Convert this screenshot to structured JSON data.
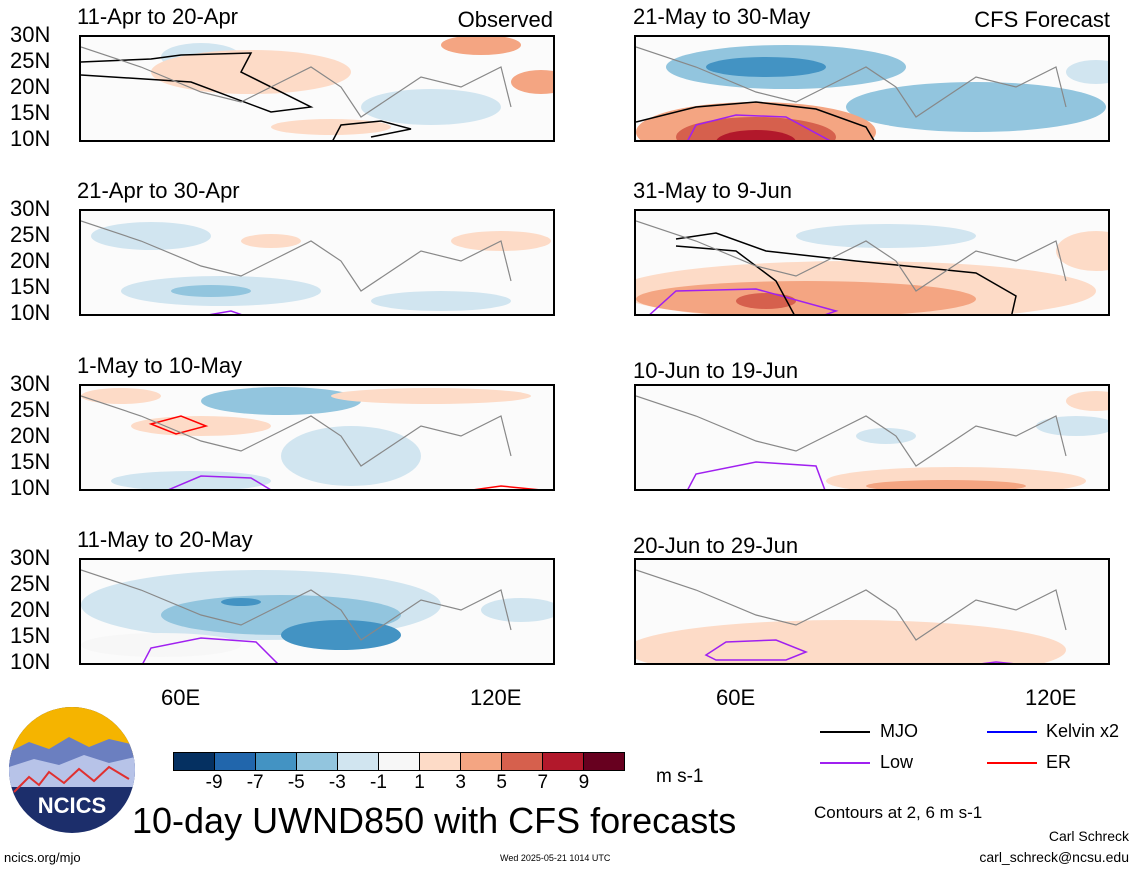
{
  "panels": [
    {
      "title": "11-Apr to 20-Apr",
      "label": "Observed"
    },
    {
      "title": "21-Apr to 30-Apr",
      "label": ""
    },
    {
      "title": "1-May to 10-May",
      "label": ""
    },
    {
      "title": "11-May to 20-May",
      "label": ""
    },
    {
      "title": "21-May to 30-May",
      "label": "CFS Forecast"
    },
    {
      "title": "31-May to 9-Jun",
      "label": ""
    },
    {
      "title": "10-Jun to 19-Jun",
      "label": ""
    },
    {
      "title": "20-Jun to 29-Jun",
      "label": ""
    }
  ],
  "lat_labels": [
    "30N",
    "25N",
    "20N",
    "15N",
    "10N"
  ],
  "lon_labels": [
    "60E",
    "120E"
  ],
  "colorbar": {
    "colors": [
      "#053061",
      "#2166ac",
      "#4393c3",
      "#92c5de",
      "#d1e5f0",
      "#f7f7f7",
      "#fddbc7",
      "#f4a582",
      "#d6604d",
      "#b2182b",
      "#67001f"
    ],
    "labels": [
      "-9",
      "-7",
      "-5",
      "-3",
      "-1",
      "1",
      "3",
      "5",
      "7",
      "9"
    ],
    "unit": "m s-1"
  },
  "legend": {
    "items": [
      {
        "label": "MJO",
        "color": "#000000"
      },
      {
        "label": "Kelvin x2",
        "color": "#0000ff"
      },
      {
        "label": "Low",
        "color": "#a020f0"
      },
      {
        "label": "ER",
        "color": "#ff0000"
      }
    ],
    "contours_note": "Contours at 2, 6 m s-1"
  },
  "logo_text": "NCICS",
  "main_title": "10-day UWND850 with CFS forecasts",
  "footer": {
    "url": "ncics.org/mjo",
    "timestamp": "Wed 2025-05-21 1014 UTC",
    "author": "Carl Schreck",
    "email": "carl_schreck@ncsu.edu"
  }
}
